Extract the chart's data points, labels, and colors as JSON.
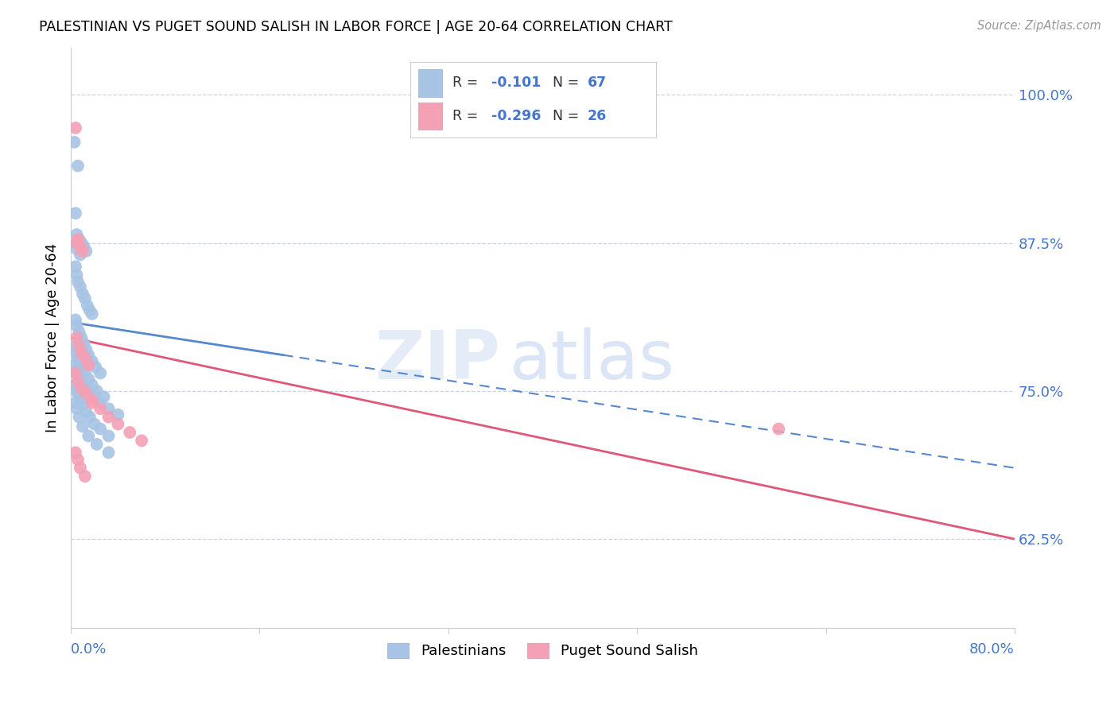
{
  "title": "PALESTINIAN VS PUGET SOUND SALISH IN LABOR FORCE | AGE 20-64 CORRELATION CHART",
  "source": "Source: ZipAtlas.com",
  "ylabel": "In Labor Force | Age 20-64",
  "right_ytick_labels": [
    "100.0%",
    "87.5%",
    "75.0%",
    "62.5%"
  ],
  "right_ytick_values": [
    1.0,
    0.875,
    0.75,
    0.625
  ],
  "xlim": [
    0.0,
    0.8
  ],
  "ylim": [
    0.55,
    1.04
  ],
  "legend_label1": "Palestinians",
  "legend_label2": "Puget Sound Salish",
  "blue_color": "#a8c4e5",
  "blue_line_color": "#5588cc",
  "pink_color": "#f4a0b5",
  "pink_line_color": "#e05878",
  "right_axis_color": "#4477cc",
  "blue_line_y_start": 0.808,
  "blue_line_y_end": 0.685,
  "pink_line_y_start": 0.795,
  "pink_line_y_end": 0.625,
  "blue_scatter_x": [
    0.003,
    0.006,
    0.004,
    0.005,
    0.007,
    0.009,
    0.011,
    0.013,
    0.005,
    0.008,
    0.004,
    0.005,
    0.006,
    0.008,
    0.01,
    0.012,
    0.014,
    0.016,
    0.018,
    0.005,
    0.004,
    0.005,
    0.007,
    0.009,
    0.011,
    0.013,
    0.015,
    0.018,
    0.021,
    0.025,
    0.004,
    0.005,
    0.006,
    0.008,
    0.01,
    0.012,
    0.015,
    0.018,
    0.022,
    0.028,
    0.004,
    0.005,
    0.007,
    0.009,
    0.012,
    0.015,
    0.02,
    0.025,
    0.032,
    0.04,
    0.004,
    0.005,
    0.006,
    0.008,
    0.01,
    0.013,
    0.016,
    0.02,
    0.025,
    0.032,
    0.004,
    0.005,
    0.007,
    0.01,
    0.015,
    0.022,
    0.032
  ],
  "blue_scatter_y": [
    0.96,
    0.94,
    0.9,
    0.882,
    0.878,
    0.875,
    0.872,
    0.868,
    0.875,
    0.865,
    0.855,
    0.848,
    0.842,
    0.838,
    0.832,
    0.828,
    0.822,
    0.818,
    0.815,
    0.87,
    0.81,
    0.805,
    0.8,
    0.795,
    0.79,
    0.785,
    0.78,
    0.775,
    0.77,
    0.765,
    0.788,
    0.782,
    0.778,
    0.775,
    0.77,
    0.765,
    0.76,
    0.755,
    0.75,
    0.745,
    0.772,
    0.768,
    0.762,
    0.758,
    0.755,
    0.75,
    0.745,
    0.74,
    0.735,
    0.73,
    0.755,
    0.75,
    0.748,
    0.742,
    0.738,
    0.732,
    0.728,
    0.722,
    0.718,
    0.712,
    0.74,
    0.735,
    0.728,
    0.72,
    0.712,
    0.705,
    0.698
  ],
  "pink_scatter_x": [
    0.004,
    0.006,
    0.005,
    0.008,
    0.01,
    0.005,
    0.007,
    0.009,
    0.012,
    0.015,
    0.004,
    0.006,
    0.009,
    0.013,
    0.018,
    0.025,
    0.032,
    0.04,
    0.05,
    0.06,
    0.004,
    0.006,
    0.008,
    0.012,
    0.018,
    0.6
  ],
  "pink_scatter_y": [
    0.972,
    0.878,
    0.875,
    0.872,
    0.868,
    0.795,
    0.788,
    0.782,
    0.778,
    0.772,
    0.765,
    0.758,
    0.752,
    0.748,
    0.742,
    0.735,
    0.728,
    0.722,
    0.715,
    0.708,
    0.698,
    0.692,
    0.685,
    0.678,
    0.74,
    0.718
  ],
  "watermark_zip": "ZIP",
  "watermark_atlas": "atlas"
}
